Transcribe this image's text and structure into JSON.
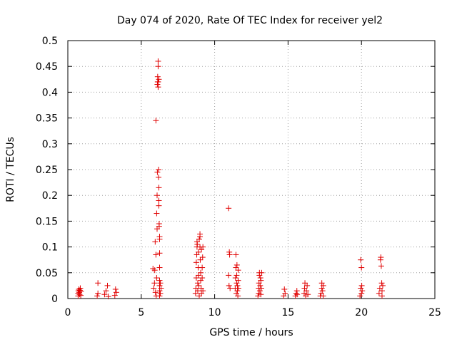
{
  "chart_data": {
    "type": "scatter",
    "title": "Day 074 of 2020, Rate Of TEC Index for receiver yel2",
    "xlabel": "GPS time / hours",
    "ylabel": "ROTI / TECUs",
    "xlim": [
      0,
      25
    ],
    "ylim": [
      0,
      0.5
    ],
    "x_ticks": [
      0,
      5,
      10,
      15,
      20,
      25
    ],
    "y_ticks": [
      0,
      0.05,
      0.1,
      0.15,
      0.2,
      0.25,
      0.3,
      0.35,
      0.4,
      0.45,
      0.5
    ],
    "x_tick_labels": [
      "0",
      "5",
      "10",
      "15",
      "20",
      "25"
    ],
    "y_tick_labels": [
      "0",
      "0.05",
      "0.1",
      "0.15",
      "0.2",
      "0.25",
      "0.3",
      "0.35",
      "0.4",
      "0.45",
      "0.5"
    ],
    "grid": true,
    "marker": "+",
    "color": "#e00000",
    "series": [
      {
        "name": "yel2",
        "points": [
          [
            0.7,
            0.005
          ],
          [
            0.7,
            0.01
          ],
          [
            0.72,
            0.015
          ],
          [
            0.75,
            0.018
          ],
          [
            0.78,
            0.012
          ],
          [
            0.8,
            0.008
          ],
          [
            0.82,
            0.016
          ],
          [
            0.85,
            0.02
          ],
          [
            0.88,
            0.006
          ],
          [
            0.9,
            0.014
          ],
          [
            2.0,
            0.005
          ],
          [
            2.05,
            0.03
          ],
          [
            2.05,
            0.01
          ],
          [
            2.5,
            0.008
          ],
          [
            2.6,
            0.015
          ],
          [
            2.7,
            0.025
          ],
          [
            2.75,
            0.004
          ],
          [
            3.2,
            0.006
          ],
          [
            3.25,
            0.018
          ],
          [
            3.3,
            0.012
          ],
          [
            5.8,
            0.058
          ],
          [
            5.85,
            0.02
          ],
          [
            5.9,
            0.03
          ],
          [
            5.92,
            0.055
          ],
          [
            5.95,
            0.11
          ],
          [
            5.97,
            0.012
          ],
          [
            6.0,
            0.085
          ],
          [
            6.0,
            0.345
          ],
          [
            6.02,
            0.005
          ],
          [
            6.05,
            0.04
          ],
          [
            6.05,
            0.165
          ],
          [
            6.08,
            0.2
          ],
          [
            6.1,
            0.245
          ],
          [
            6.1,
            0.415
          ],
          [
            6.12,
            0.42
          ],
          [
            6.12,
            0.43
          ],
          [
            6.15,
            0.45
          ],
          [
            6.15,
            0.46
          ],
          [
            6.15,
            0.42
          ],
          [
            6.15,
            0.41
          ],
          [
            6.18,
            0.25
          ],
          [
            6.18,
            0.235
          ],
          [
            6.2,
            0.215
          ],
          [
            6.2,
            0.19
          ],
          [
            6.2,
            0.18
          ],
          [
            6.22,
            0.145
          ],
          [
            6.22,
            0.14
          ],
          [
            6.25,
            0.12
          ],
          [
            6.25,
            0.115
          ],
          [
            6.25,
            0.088
          ],
          [
            6.25,
            0.06
          ],
          [
            6.25,
            0.035
          ],
          [
            6.25,
            0.025
          ],
          [
            6.25,
            0.015
          ],
          [
            6.25,
            0.005
          ],
          [
            6.3,
            0.01
          ],
          [
            6.3,
            0.03
          ],
          [
            6.35,
            0.02
          ],
          [
            6.08,
            0.135
          ],
          [
            6.2,
            0.425
          ],
          [
            8.7,
            0.01
          ],
          [
            8.72,
            0.02
          ],
          [
            8.75,
            0.04
          ],
          [
            8.75,
            0.07
          ],
          [
            8.78,
            0.085
          ],
          [
            8.8,
            0.1
          ],
          [
            8.8,
            0.11
          ],
          [
            8.82,
            0.105
          ],
          [
            8.85,
            0.03
          ],
          [
            8.85,
            0.015
          ],
          [
            8.88,
            0.06
          ],
          [
            8.9,
            0.09
          ],
          [
            8.9,
            0.045
          ],
          [
            8.92,
            0.025
          ],
          [
            8.95,
            0.115
          ],
          [
            8.95,
            0.005
          ],
          [
            9.0,
            0.12
          ],
          [
            9.0,
            0.125
          ],
          [
            9.0,
            0.1
          ],
          [
            9.02,
            0.075
          ],
          [
            9.05,
            0.05
          ],
          [
            9.05,
            0.035
          ],
          [
            9.08,
            0.02
          ],
          [
            9.1,
            0.01
          ],
          [
            9.1,
            0.095
          ],
          [
            9.15,
            0.04
          ],
          [
            9.15,
            0.06
          ],
          [
            9.18,
            0.08
          ],
          [
            9.2,
            0.1
          ],
          [
            9.2,
            0.015
          ],
          [
            10.95,
            0.175
          ],
          [
            10.95,
            0.045
          ],
          [
            10.98,
            0.025
          ],
          [
            11.0,
            0.09
          ],
          [
            11.02,
            0.085
          ],
          [
            11.05,
            0.02
          ],
          [
            11.4,
            0.02
          ],
          [
            11.42,
            0.04
          ],
          [
            11.45,
            0.06
          ],
          [
            11.45,
            0.085
          ],
          [
            11.48,
            0.01
          ],
          [
            11.5,
            0.03
          ],
          [
            11.5,
            0.045
          ],
          [
            11.52,
            0.065
          ],
          [
            11.55,
            0.025
          ],
          [
            11.55,
            0.015
          ],
          [
            11.58,
            0.005
          ],
          [
            11.6,
            0.035
          ],
          [
            11.6,
            0.055
          ],
          [
            11.62,
            0.02
          ],
          [
            12.95,
            0.005
          ],
          [
            13.0,
            0.01
          ],
          [
            13.0,
            0.02
          ],
          [
            13.02,
            0.03
          ],
          [
            13.05,
            0.045
          ],
          [
            13.05,
            0.05
          ],
          [
            13.08,
            0.015
          ],
          [
            13.1,
            0.025
          ],
          [
            13.12,
            0.04
          ],
          [
            13.15,
            0.035
          ],
          [
            13.15,
            0.008
          ],
          [
            13.18,
            0.02
          ],
          [
            13.2,
            0.05
          ],
          [
            14.7,
            0.005
          ],
          [
            14.75,
            0.018
          ],
          [
            14.8,
            0.01
          ],
          [
            15.5,
            0.005
          ],
          [
            15.55,
            0.01
          ],
          [
            15.6,
            0.015
          ],
          [
            15.62,
            0.008
          ],
          [
            16.1,
            0.01
          ],
          [
            16.12,
            0.02
          ],
          [
            16.15,
            0.03
          ],
          [
            16.2,
            0.005
          ],
          [
            16.25,
            0.015
          ],
          [
            16.3,
            0.025
          ],
          [
            16.35,
            0.008
          ],
          [
            17.2,
            0.005
          ],
          [
            17.25,
            0.01
          ],
          [
            17.3,
            0.02
          ],
          [
            17.3,
            0.03
          ],
          [
            17.35,
            0.015
          ],
          [
            17.4,
            0.005
          ],
          [
            17.4,
            0.025
          ],
          [
            19.9,
            0.005
          ],
          [
            19.95,
            0.02
          ],
          [
            19.95,
            0.075
          ],
          [
            20.0,
            0.06
          ],
          [
            20.0,
            0.01
          ],
          [
            20.02,
            0.025
          ],
          [
            20.05,
            0.015
          ],
          [
            21.2,
            0.01
          ],
          [
            21.25,
            0.02
          ],
          [
            21.3,
            0.075
          ],
          [
            21.32,
            0.08
          ],
          [
            21.35,
            0.063
          ],
          [
            21.38,
            0.03
          ],
          [
            21.4,
            0.015
          ],
          [
            21.4,
            0.005
          ],
          [
            21.45,
            0.025
          ]
        ]
      }
    ]
  }
}
